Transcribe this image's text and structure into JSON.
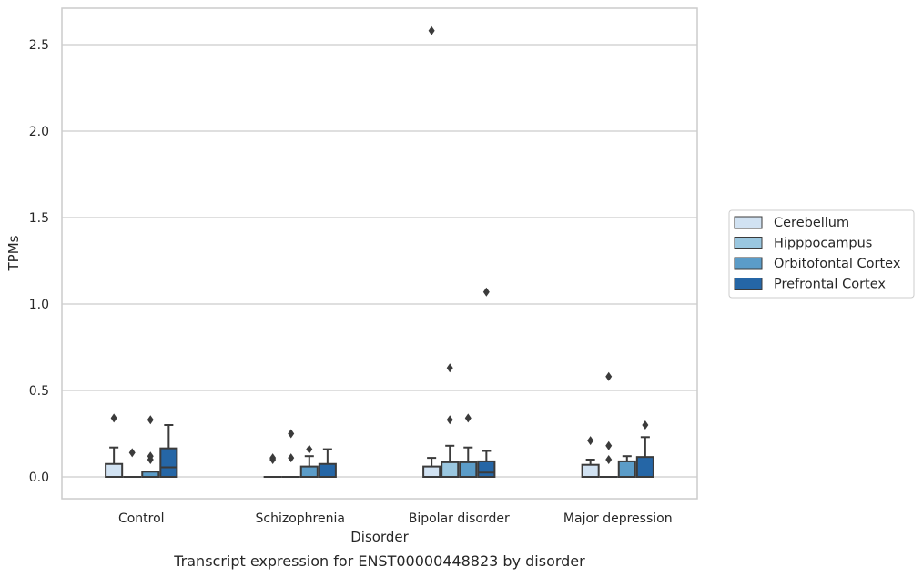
{
  "caption": "Transcript expression for ENST00000448823 by disorder",
  "chart_data": {
    "type": "boxplot",
    "xlabel": "Disorder",
    "ylabel": "TPMs",
    "ylim": [
      -0.13,
      2.72
    ],
    "yticks": [
      0.0,
      0.5,
      1.0,
      1.5,
      2.0,
      2.5
    ],
    "ytick_labels": [
      "0.0",
      "0.5",
      "1.0",
      "1.5",
      "2.0",
      "2.5"
    ],
    "grid": "horizontal",
    "legend_position": "right",
    "categories": [
      "Control",
      "Schizophrenia",
      "Bipolar disorder",
      "Major depression"
    ],
    "series": [
      {
        "name": "Cerebellum",
        "color": "#d1e2f2",
        "boxes": [
          {
            "q1": 0.0,
            "median": 0.0,
            "q3": 0.075,
            "whisker_low": 0.0,
            "whisker_high": 0.17,
            "outliers": [
              0.34
            ]
          },
          {
            "q1": 0.0,
            "median": 0.0,
            "q3": 0.0,
            "whisker_low": 0.0,
            "whisker_high": 0.0,
            "outliers": [
              0.1,
              0.11
            ]
          },
          {
            "q1": 0.0,
            "median": 0.0,
            "q3": 0.06,
            "whisker_low": 0.0,
            "whisker_high": 0.11,
            "outliers": [
              2.58
            ]
          },
          {
            "q1": 0.0,
            "median": 0.0,
            "q3": 0.07,
            "whisker_low": 0.0,
            "whisker_high": 0.1,
            "outliers": [
              0.21
            ]
          }
        ]
      },
      {
        "name": "Hipppocampus",
        "color": "#9ac7e0",
        "boxes": [
          {
            "q1": 0.0,
            "median": 0.0,
            "q3": 0.0,
            "whisker_low": 0.0,
            "whisker_high": 0.0,
            "outliers": [
              0.14
            ]
          },
          {
            "q1": 0.0,
            "median": 0.0,
            "q3": 0.0,
            "whisker_low": 0.0,
            "whisker_high": 0.0,
            "outliers": [
              0.11,
              0.25
            ]
          },
          {
            "q1": 0.0,
            "median": 0.0,
            "q3": 0.085,
            "whisker_low": 0.0,
            "whisker_high": 0.18,
            "outliers": [
              0.33,
              0.63
            ]
          },
          {
            "q1": 0.0,
            "median": 0.0,
            "q3": 0.0,
            "whisker_low": 0.0,
            "whisker_high": 0.0,
            "outliers": [
              0.1,
              0.18,
              0.58
            ]
          }
        ]
      },
      {
        "name": "Orbitofontal Cortex",
        "color": "#5b9cc8",
        "boxes": [
          {
            "q1": 0.0,
            "median": 0.0,
            "q3": 0.03,
            "whisker_low": 0.0,
            "whisker_high": 0.03,
            "outliers": [
              0.1,
              0.12,
              0.33
            ]
          },
          {
            "q1": 0.0,
            "median": 0.0,
            "q3": 0.06,
            "whisker_low": 0.0,
            "whisker_high": 0.12,
            "outliers": [
              0.16
            ]
          },
          {
            "q1": 0.0,
            "median": 0.0,
            "q3": 0.085,
            "whisker_low": 0.0,
            "whisker_high": 0.17,
            "outliers": [
              0.34
            ]
          },
          {
            "q1": 0.0,
            "median": 0.0,
            "q3": 0.09,
            "whisker_low": 0.0,
            "whisker_high": 0.12,
            "outliers": []
          }
        ]
      },
      {
        "name": "Prefrontal Cortex",
        "color": "#2566a6",
        "boxes": [
          {
            "q1": 0.0,
            "median": 0.055,
            "q3": 0.165,
            "whisker_low": 0.0,
            "whisker_high": 0.3,
            "outliers": []
          },
          {
            "q1": 0.0,
            "median": 0.0,
            "q3": 0.075,
            "whisker_low": 0.0,
            "whisker_high": 0.16,
            "outliers": []
          },
          {
            "q1": 0.0,
            "median": 0.025,
            "q3": 0.09,
            "whisker_low": 0.0,
            "whisker_high": 0.15,
            "outliers": [
              1.07
            ]
          },
          {
            "q1": 0.0,
            "median": 0.0,
            "q3": 0.115,
            "whisker_low": 0.0,
            "whisker_high": 0.23,
            "outliers": [
              0.3
            ]
          }
        ]
      }
    ]
  }
}
